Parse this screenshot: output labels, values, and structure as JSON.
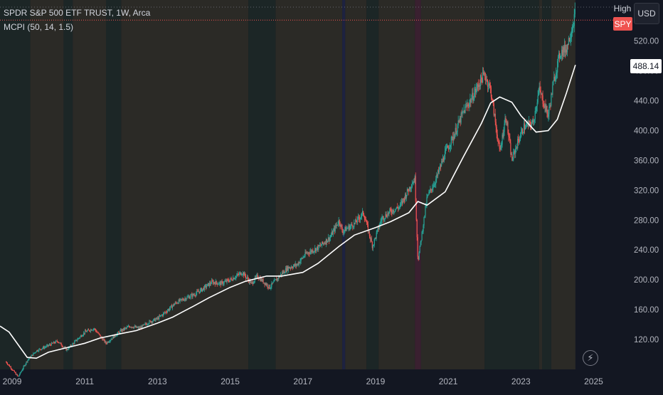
{
  "legend": {
    "title": "SPDR S&P 500 ETF TRUST, 1W, Arca",
    "indicator": "MCPI (50, 14, 1.5)"
  },
  "controls": {
    "high_label": "High",
    "currency_label": "USD",
    "symbol_tag": "SPY",
    "ma_value_tag": "488.14",
    "flash_icon": "lightning-icon"
  },
  "colors": {
    "background": "#131722",
    "bullish_regime": "#2b2a26",
    "neutral_regime": "#1c2626",
    "bearish_regime": "#3a2030",
    "fear_regime": "#1d2240",
    "up_candle": "#26a69a",
    "down_candle": "#ef5350",
    "moving_average": "#ffffff",
    "price_line": "#ef5350",
    "axis_text": "#b2b5be"
  },
  "chart_data": {
    "type": "line",
    "series": [
      {
        "values_kind": "weekly closes (approximate)",
        "x": [
          "2008-11",
          "2009-03",
          "2009-06",
          "2009-09",
          "2010-01",
          "2010-04",
          "2010-07",
          "2010-10",
          "2011-01",
          "2011-04",
          "2011-08",
          "2011-10",
          "2012-01",
          "2012-04",
          "2012-07",
          "2012-10",
          "2013-01",
          "2013-04",
          "2013-07",
          "2013-10",
          "2014-01",
          "2014-04",
          "2014-07",
          "2014-10",
          "2015-01",
          "2015-05",
          "2015-08",
          "2015-10",
          "2016-02",
          "2016-06",
          "2016-08",
          "2016-11",
          "2017-02",
          "2017-06",
          "2017-10",
          "2018-01",
          "2018-02",
          "2018-06",
          "2018-09",
          "2018-12",
          "2019-03",
          "2019-06",
          "2019-09",
          "2020-01",
          "2020-02",
          "2020-03",
          "2020-06",
          "2020-09",
          "2020-12",
          "2021-03",
          "2021-06",
          "2021-09",
          "2021-12",
          "2022-01",
          "2022-03",
          "2022-06",
          "2022-08",
          "2022-10",
          "2022-12",
          "2023-02",
          "2023-05",
          "2023-07",
          "2023-10",
          "2023-12",
          "2024-02",
          "2024-04",
          "2024-06",
          "2024-07"
        ],
        "y": [
          90,
          70,
          92,
          105,
          112,
          118,
          106,
          118,
          130,
          135,
          115,
          122,
          132,
          138,
          135,
          143,
          148,
          158,
          169,
          175,
          180,
          188,
          197,
          195,
          200,
          210,
          195,
          205,
          190,
          208,
          216,
          220,
          235,
          243,
          257,
          280,
          265,
          275,
          290,
          245,
          282,
          292,
          298,
          330,
          335,
          225,
          310,
          335,
          370,
          395,
          425,
          445,
          470,
          475,
          455,
          370,
          420,
          360,
          385,
          405,
          410,
          455,
          420,
          470,
          505,
          510,
          540,
          560
        ]
      },
      {
        "values_kind": "moving average (approximate)",
        "x": [
          "2008-09",
          "2008-12",
          "2009-06",
          "2009-09",
          "2010-01",
          "2010-06",
          "2011-01",
          "2011-06",
          "2012-01",
          "2012-06",
          "2013-01",
          "2013-06",
          "2014-01",
          "2014-06",
          "2015-01",
          "2015-06",
          "2016-01",
          "2016-06",
          "2017-01",
          "2017-06",
          "2018-01",
          "2018-06",
          "2019-01",
          "2019-06",
          "2019-12",
          "2020-03",
          "2020-06",
          "2020-12",
          "2021-06",
          "2021-12",
          "2022-03",
          "2022-06",
          "2022-10",
          "2023-01",
          "2023-06",
          "2023-10",
          "2024-01",
          "2024-04",
          "2024-07"
        ],
        "y": [
          138,
          130,
          96,
          95,
          103,
          108,
          115,
          122,
          128,
          132,
          142,
          150,
          165,
          176,
          190,
          198,
          205,
          205,
          210,
          222,
          245,
          260,
          270,
          278,
          290,
          305,
          300,
          318,
          365,
          410,
          437,
          445,
          438,
          420,
          398,
          400,
          415,
          450,
          488
        ]
      }
    ],
    "regimes": [
      {
        "from": "2008-09",
        "to": "2009-07",
        "kind": "neutral"
      },
      {
        "from": "2009-07",
        "to": "2010-06",
        "kind": "bullish"
      },
      {
        "from": "2010-06",
        "to": "2010-09",
        "kind": "neutral"
      },
      {
        "from": "2010-09",
        "to": "2011-08",
        "kind": "bullish"
      },
      {
        "from": "2011-08",
        "to": "2012-01",
        "kind": "neutral"
      },
      {
        "from": "2012-01",
        "to": "2015-07",
        "kind": "bullish"
      },
      {
        "from": "2015-07",
        "to": "2016-04",
        "kind": "neutral"
      },
      {
        "from": "2016-04",
        "to": "2018-02",
        "kind": "bullish"
      },
      {
        "from": "2018-02",
        "to": "2018-03",
        "kind": "fear"
      },
      {
        "from": "2018-03",
        "to": "2018-10",
        "kind": "bullish"
      },
      {
        "from": "2018-10",
        "to": "2019-02",
        "kind": "neutral"
      },
      {
        "from": "2019-02",
        "to": "2020-02",
        "kind": "bullish"
      },
      {
        "from": "2020-02",
        "to": "2020-04",
        "kind": "bearish"
      },
      {
        "from": "2020-04",
        "to": "2022-01",
        "kind": "bullish"
      },
      {
        "from": "2022-01",
        "to": "2023-07",
        "kind": "neutral"
      },
      {
        "from": "2023-07",
        "to": "2023-08",
        "kind": "bullish"
      },
      {
        "from": "2023-08",
        "to": "2023-11",
        "kind": "neutral"
      },
      {
        "from": "2023-11",
        "to": "2024-07",
        "kind": "bullish"
      }
    ],
    "x_ticks": [
      "2009",
      "2011",
      "2013",
      "2015",
      "2017",
      "2019",
      "2021",
      "2023",
      "2025"
    ],
    "y_ticks": [
      "120.00",
      "160.00",
      "200.00",
      "240.00",
      "280.00",
      "320.00",
      "360.00",
      "400.00",
      "440.00",
      "480.00",
      "520.00"
    ],
    "ylim": [
      80,
      575
    ],
    "xlim": [
      "2008-09",
      "2025-07"
    ],
    "last_price": 548
  }
}
